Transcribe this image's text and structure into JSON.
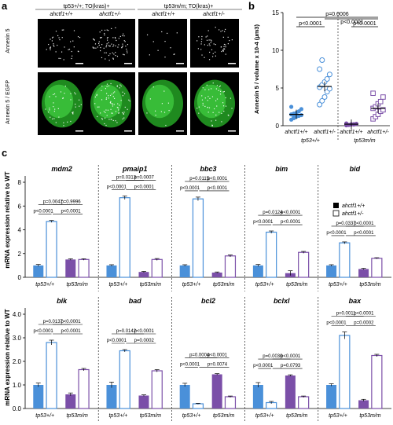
{
  "panel_a": {
    "letter": "a",
    "group1_label": "tp53+/+; TO(kras)+",
    "group2_label": "tp53m/m; TO(kras)+",
    "col_labels": [
      "ahctf1+/+",
      "ahctf1+/-",
      "ahctf1+/+",
      "ahctf1+/-"
    ],
    "row_labels": [
      "Annexin 5",
      "Annexin 5 / EGFP"
    ]
  },
  "panel_b": {
    "letter": "b",
    "ylabel": "Annexin 5 / volume x 10-4 (µm3)",
    "xlabels": [
      "ahctf1+/+",
      "ahctf1+/-",
      "ahctf1+/+",
      "ahctf1+/-"
    ],
    "group_labels": [
      "tp53+/+",
      "tp53m/m"
    ],
    "pvalues": [
      "p=0.0006",
      "p<0.0001",
      "p<0.0001",
      "p<0.0001"
    ],
    "colors": {
      "wt_p53wt": "#4a90d9",
      "het_p53wt": "#4a90d9",
      "wt_p53mut": "#7b4fa8",
      "het_p53mut": "#7b4fa8"
    }
  },
  "panel_c": {
    "letter": "c",
    "ylabel": "mRNA expression relative to WT",
    "legend": [
      "ahctf1+/+",
      "ahctf1+/-"
    ],
    "xgroups": [
      "tp53+/+",
      "tp53m/m"
    ],
    "colors": {
      "blue": "#4a90d9",
      "purple": "#7b4fa8"
    }
  },
  "chart_data": [
    {
      "type": "scatter",
      "panel": "b",
      "ylabel": "Annexin 5 / volume x 10-4 (µm3)",
      "ylim": [
        0,
        15
      ],
      "yticks": [
        0,
        5,
        10,
        15
      ],
      "series": [
        {
          "name": "ahctf1+/+ tp53+/+",
          "mean": 1.5,
          "points": [
            0.8,
            1.0,
            1.2,
            1.3,
            1.4,
            1.5,
            1.6,
            1.7,
            1.9,
            2.2,
            2.5,
            1.1
          ]
        },
        {
          "name": "ahctf1+/- tp53+/+",
          "mean": 5.2,
          "points": [
            2.8,
            3.3,
            3.8,
            4.5,
            4.9,
            5.1,
            5.4,
            5.8,
            6.2,
            6.8,
            7.5,
            8.7
          ]
        },
        {
          "name": "ahctf1+/+ tp53m/m",
          "mean": 0.2,
          "points": [
            0.05,
            0.1,
            0.15,
            0.2,
            0.25,
            0.3,
            0.1,
            0.2,
            0.15
          ]
        },
        {
          "name": "ahctf1+/- tp53m/m",
          "mean": 2.3,
          "points": [
            0.9,
            1.2,
            1.5,
            1.9,
            2.1,
            2.3,
            2.5,
            2.9,
            3.2,
            3.8,
            4.3
          ]
        }
      ]
    },
    {
      "type": "bar",
      "panel": "c",
      "ylim": [
        0,
        8
      ],
      "yticks": [
        0,
        2,
        4,
        6,
        8
      ],
      "genes": [
        {
          "name": "mdm2",
          "values": [
            1.0,
            4.7,
            1.5,
            1.5
          ],
          "errors": [
            0.08,
            0.08,
            0.06,
            0.06
          ],
          "p": [
            {
              "a": 0,
              "b": 1,
              "t": "p<0.0001"
            },
            {
              "a": 1,
              "b": 3,
              "t": "p<0.0001"
            },
            {
              "a": 0,
              "b": 2,
              "t": "p=0.0047"
            },
            {
              "a": 1,
              "b": 3,
              "t": "p=0.9996"
            }
          ]
        },
        {
          "name": "pmaip1",
          "values": [
            1.0,
            6.7,
            0.45,
            1.5
          ],
          "errors": [
            0.06,
            0.15,
            0.05,
            0.08
          ],
          "p": [
            {
              "t": "p<0.0001"
            },
            {
              "t": "p<0.0001"
            },
            {
              "t": "p=0.0313"
            },
            {
              "t": "p=0.0007"
            }
          ]
        },
        {
          "name": "bbc3",
          "values": [
            1.0,
            6.6,
            0.4,
            1.8
          ],
          "errors": [
            0.06,
            0.15,
            0.05,
            0.08
          ],
          "p": [
            {
              "t": "p<0.0001"
            },
            {
              "t": "p<0.0001"
            },
            {
              "t": "p=0.0115"
            },
            {
              "t": "p<0.0001"
            }
          ]
        },
        {
          "name": "bim",
          "values": [
            1.0,
            3.8,
            0.35,
            2.1
          ],
          "errors": [
            0.08,
            0.1,
            0.2,
            0.08
          ],
          "p": [
            {
              "t": "p<0.0001"
            },
            {
              "t": "p<0.0001"
            },
            {
              "t": "p=0.0124"
            },
            {
              "t": "p<0.0001"
            }
          ]
        },
        {
          "name": "bid",
          "values": [
            1.0,
            2.9,
            0.7,
            1.6
          ],
          "errors": [
            0.06,
            0.08,
            0.05,
            0.05
          ],
          "p": [
            {
              "t": "p<0.0001"
            },
            {
              "t": "p<0.0001"
            },
            {
              "t": "p=0.0337"
            },
            {
              "t": "p<0.0001"
            }
          ]
        }
      ]
    },
    {
      "type": "bar",
      "panel": "c",
      "ylim": [
        0,
        4
      ],
      "yticks": [
        0.0,
        1.0,
        2.0,
        3.0,
        4.0
      ],
      "genes": [
        {
          "name": "bik",
          "values": [
            1.0,
            2.8,
            0.6,
            1.65
          ],
          "errors": [
            0.08,
            0.1,
            0.06,
            0.05
          ],
          "p": [
            {
              "t": "p<0.0001"
            },
            {
              "t": "p<0.0001"
            },
            {
              "t": "p=0.0137"
            },
            {
              "t": "p<0.0001"
            }
          ]
        },
        {
          "name": "bad",
          "values": [
            1.0,
            2.45,
            0.55,
            1.6
          ],
          "errors": [
            0.12,
            0.05,
            0.03,
            0.05
          ],
          "p": [
            {
              "t": "p<0.0001"
            },
            {
              "t": "p=0.0002"
            },
            {
              "t": "p=0.0142"
            },
            {
              "t": "p<0.0001"
            }
          ]
        },
        {
          "name": "bcl2",
          "values": [
            1.0,
            0.2,
            1.45,
            0.5
          ],
          "errors": [
            0.07,
            0.02,
            0.03,
            0.03
          ],
          "p": [
            {
              "t": "p<0.0001"
            },
            {
              "t": "p=0.0074"
            },
            {
              "t": "p=0.0004"
            },
            {
              "t": "p<0.0001"
            }
          ]
        },
        {
          "name": "bclxl",
          "values": [
            1.0,
            0.25,
            1.4,
            0.5
          ],
          "errors": [
            0.1,
            0.05,
            0.03,
            0.03
          ],
          "p": [
            {
              "t": "p<0.0001"
            },
            {
              "t": "p=0.0793"
            },
            {
              "t": "p=0.0030"
            },
            {
              "t": "p<0.0001"
            }
          ]
        },
        {
          "name": "bax",
          "values": [
            1.0,
            3.1,
            0.35,
            2.25
          ],
          "errors": [
            0.05,
            0.15,
            0.04,
            0.05
          ],
          "p": [
            {
              "t": "p<0.0001"
            },
            {
              "t": "p=0.0002"
            },
            {
              "t": "p=0.0011"
            },
            {
              "t": "p<0.0001"
            }
          ]
        }
      ]
    }
  ]
}
